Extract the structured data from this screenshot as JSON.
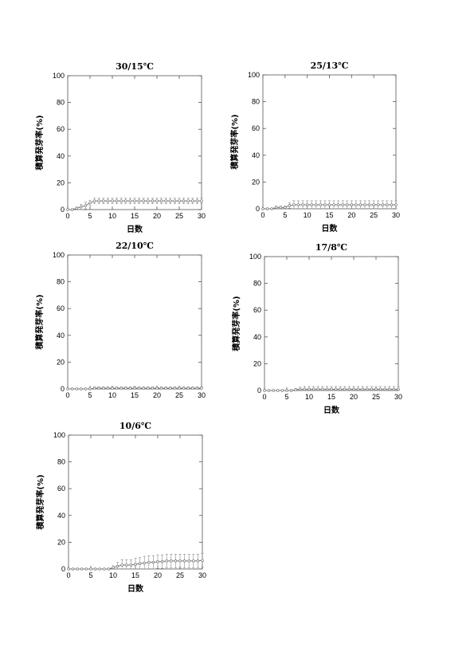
{
  "chart_data": [
    {
      "type": "line",
      "title": "30/15℃",
      "xlabel": "日数",
      "ylabel": "積算発芽率(%)",
      "xlim": [
        0,
        30
      ],
      "ylim": [
        0,
        100
      ],
      "xticks": [
        0,
        5,
        10,
        15,
        20,
        25,
        30
      ],
      "yticks": [
        0,
        20,
        40,
        60,
        80,
        100
      ],
      "grid": false,
      "series": [
        {
          "x": [
            0,
            1,
            2,
            3,
            4,
            5,
            6,
            7,
            8,
            9,
            10,
            11,
            12,
            13,
            14,
            15,
            16,
            17,
            18,
            19,
            20,
            21,
            22,
            23,
            24,
            25,
            26,
            27,
            28,
            29,
            30
          ],
          "y": [
            0,
            0,
            1,
            2,
            3,
            5,
            6.5,
            6.5,
            6.5,
            6.5,
            6.5,
            6.5,
            6.5,
            6.5,
            6.5,
            6.5,
            6.5,
            6.5,
            6.5,
            6.5,
            6.5,
            6.5,
            6.5,
            6.5,
            6.5,
            6.5,
            6.5,
            6.5,
            6.5,
            6.5,
            6.5
          ],
          "err": [
            0,
            0,
            1,
            2,
            2.5,
            2,
            2,
            2,
            2,
            2,
            2,
            2,
            2,
            2,
            2,
            2,
            2,
            2,
            2,
            2,
            2,
            2,
            2,
            2,
            2,
            2,
            2,
            2,
            2,
            2,
            2
          ]
        }
      ]
    },
    {
      "type": "line",
      "title": "25/13℃",
      "xlabel": "日数",
      "ylabel": "積算発芽率(%)",
      "xlim": [
        0,
        30
      ],
      "ylim": [
        0,
        100
      ],
      "xticks": [
        0,
        5,
        10,
        15,
        20,
        25,
        30
      ],
      "yticks": [
        0,
        20,
        40,
        60,
        80,
        100
      ],
      "grid": false,
      "series": [
        {
          "x": [
            0,
            1,
            2,
            3,
            4,
            5,
            6,
            7,
            8,
            9,
            10,
            11,
            12,
            13,
            14,
            15,
            16,
            17,
            18,
            19,
            20,
            21,
            22,
            23,
            24,
            25,
            26,
            27,
            28,
            29,
            30
          ],
          "y": [
            0,
            0,
            0,
            1,
            1,
            1,
            2.5,
            3,
            3,
            3,
            3,
            3,
            3,
            3,
            3,
            3,
            3,
            3,
            3,
            3,
            3,
            3,
            3,
            3,
            3,
            3,
            3,
            3,
            3,
            3,
            3
          ],
          "err": [
            0,
            0,
            0,
            1,
            1,
            1,
            2,
            3,
            3,
            3,
            3,
            3,
            3,
            3,
            3,
            3,
            3,
            3,
            3,
            3,
            3,
            3,
            3,
            3,
            3,
            3,
            3,
            3,
            3,
            3,
            3
          ]
        }
      ]
    },
    {
      "type": "line",
      "title": "22/10℃",
      "xlabel": "",
      "ylabel": "積算発芽率(%)",
      "xlim": [
        0,
        30
      ],
      "ylim": [
        0,
        100
      ],
      "xticks": [
        0,
        5,
        10,
        15,
        20,
        25,
        30
      ],
      "yticks": [
        0,
        20,
        40,
        60,
        80,
        100
      ],
      "grid": false,
      "series": [
        {
          "x": [
            0,
            1,
            2,
            3,
            4,
            5,
            6,
            7,
            8,
            9,
            10,
            11,
            12,
            13,
            14,
            15,
            16,
            17,
            18,
            19,
            20,
            21,
            22,
            23,
            24,
            25,
            26,
            27,
            28,
            29,
            30
          ],
          "y": [
            0,
            0,
            0,
            0,
            0,
            0,
            0.5,
            0.5,
            0.5,
            0.5,
            0.5,
            0.5,
            0.5,
            0.5,
            0.5,
            0.5,
            0.5,
            0.5,
            0.5,
            0.5,
            0.5,
            0.5,
            0.5,
            0.5,
            0.5,
            0.5,
            0.5,
            0.5,
            0.5,
            0.5,
            0.5
          ],
          "err": [
            0,
            0,
            0,
            0,
            0,
            0,
            1,
            1,
            1,
            1,
            1,
            1,
            1,
            1,
            1,
            1,
            1,
            1,
            1,
            1,
            1,
            1,
            1,
            1,
            1,
            1,
            1,
            1,
            1,
            1,
            1
          ]
        }
      ]
    },
    {
      "type": "line",
      "title": "17/8℃",
      "xlabel": "日数",
      "ylabel": "積算発芽率(%)",
      "xlim": [
        0,
        30
      ],
      "ylim": [
        0,
        100
      ],
      "xticks": [
        0,
        5,
        10,
        15,
        20,
        25,
        30
      ],
      "yticks": [
        0,
        20,
        40,
        60,
        80,
        100
      ],
      "grid": false,
      "series": [
        {
          "x": [
            0,
            1,
            2,
            3,
            4,
            5,
            6,
            7,
            8,
            9,
            10,
            11,
            12,
            13,
            14,
            15,
            16,
            17,
            18,
            19,
            20,
            21,
            22,
            23,
            24,
            25,
            26,
            27,
            28,
            29,
            30
          ],
          "y": [
            0,
            0,
            0,
            0,
            0,
            0,
            0,
            0.5,
            1,
            1,
            1,
            1,
            1,
            1,
            1,
            1,
            1,
            1,
            1,
            1,
            1,
            1,
            1,
            1,
            1,
            1,
            1,
            1,
            1,
            1,
            1
          ],
          "err": [
            0,
            0,
            0,
            0,
            0,
            0,
            0,
            1,
            1.5,
            2,
            2,
            2,
            2,
            2,
            2,
            2,
            2,
            2,
            2,
            2,
            2,
            2,
            2,
            2,
            2,
            2,
            2,
            2,
            2,
            2,
            2
          ]
        }
      ]
    },
    {
      "type": "line",
      "title": "10/6℃",
      "xlabel": "日数",
      "ylabel": "積算発芽率(%)",
      "xlim": [
        0,
        30
      ],
      "ylim": [
        0,
        100
      ],
      "xticks": [
        0,
        5,
        10,
        15,
        20,
        25,
        30
      ],
      "yticks": [
        0,
        20,
        40,
        60,
        80,
        100
      ],
      "grid": false,
      "series": [
        {
          "x": [
            0,
            1,
            2,
            3,
            4,
            5,
            6,
            7,
            8,
            9,
            10,
            11,
            12,
            13,
            14,
            15,
            16,
            17,
            18,
            19,
            20,
            21,
            22,
            23,
            24,
            25,
            26,
            27,
            28,
            29,
            30
          ],
          "y": [
            0,
            0,
            0,
            0,
            0,
            0,
            0,
            0,
            0,
            0,
            1,
            2,
            3,
            3,
            3,
            3.5,
            4,
            4.5,
            5,
            5,
            5.5,
            5.5,
            6,
            6,
            6,
            6,
            6,
            6,
            6,
            6,
            6.5
          ],
          "err": [
            0,
            0,
            0,
            0,
            0,
            0,
            0,
            0,
            0,
            0,
            1.5,
            3,
            4,
            4,
            4,
            4.5,
            4.5,
            5,
            5,
            5,
            5,
            5,
            5,
            5,
            5,
            5,
            5,
            5,
            5,
            5,
            5
          ]
        }
      ]
    }
  ]
}
